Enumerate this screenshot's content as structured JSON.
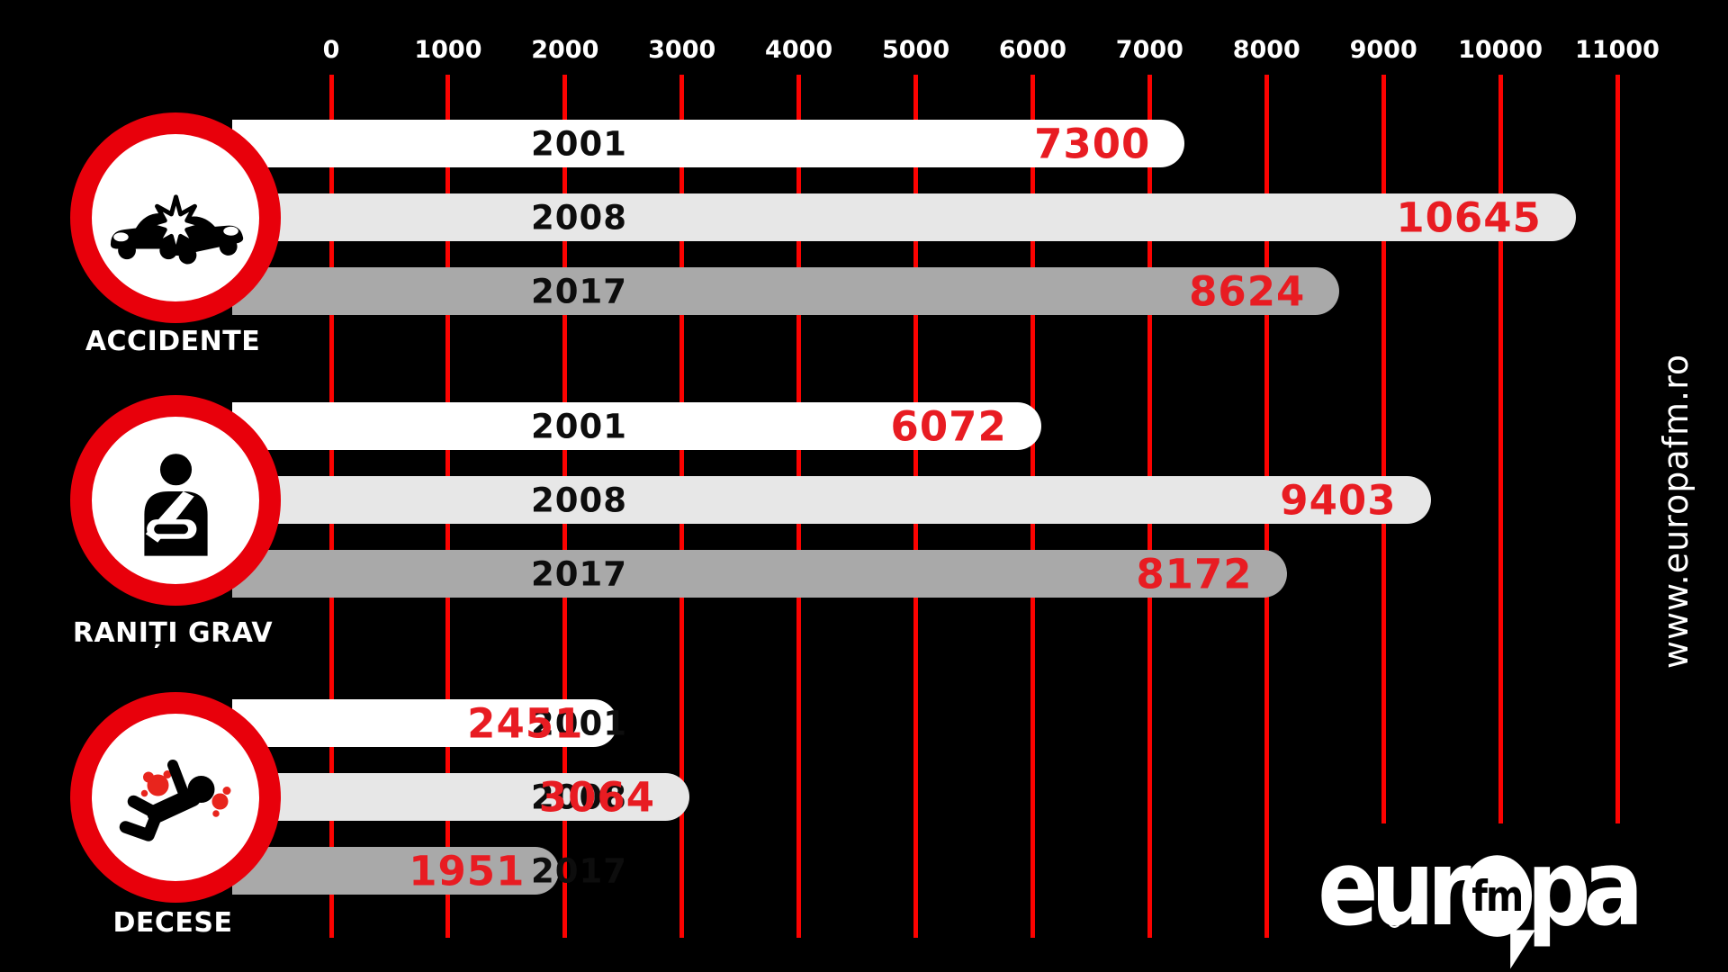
{
  "chart_data": {
    "type": "bar",
    "orientation": "horizontal",
    "title": "",
    "categories": [
      "ACCIDENTE",
      "RANIȚI GRAV",
      "DECESE"
    ],
    "category_icons": [
      "car-crash-icon",
      "injured-person-icon",
      "fallen-person-icon"
    ],
    "series": [
      {
        "name": "2001",
        "color": "#ffffff",
        "values": [
          7300,
          6072,
          2451
        ]
      },
      {
        "name": "2008",
        "color": "#e7e7e7",
        "values": [
          10645,
          9403,
          3064
        ]
      },
      {
        "name": "2017",
        "color": "#a9a9a9",
        "values": [
          8624,
          8172,
          1951
        ]
      }
    ],
    "xlim": [
      0,
      11000
    ],
    "tick_step": 1000,
    "tick_labels": [
      "0",
      "1000",
      "2000",
      "3000",
      "4000",
      "5000",
      "6000",
      "7000",
      "8000",
      "9000",
      "10000",
      "11000"
    ],
    "grid": true,
    "legend_position": "none"
  },
  "colors": {
    "background": "#000000",
    "gridline_red": "#fb0200",
    "value_red": "#e81c22",
    "ring_red": "#e8000b",
    "blood_red": "#e8251d",
    "year_text": "#0d0d0d",
    "axis_text": "#ffffff"
  },
  "branding": {
    "website": "www.europafm.ro",
    "logo_left": "eur",
    "logo_fm": "fm",
    "logo_right": "pa",
    "registered_mark": "®"
  }
}
